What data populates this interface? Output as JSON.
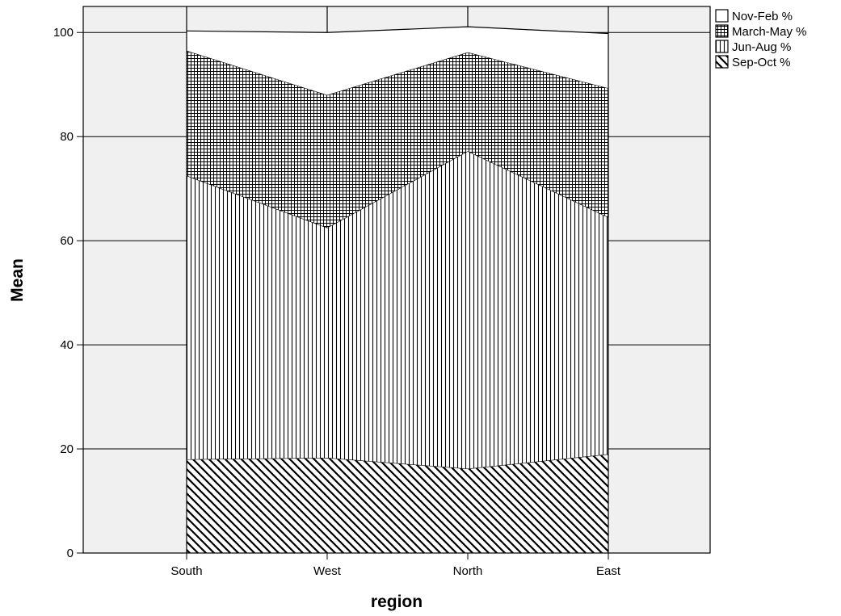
{
  "chart_data": {
    "type": "area",
    "stacked": true,
    "categories": [
      "South",
      "West",
      "North",
      "East"
    ],
    "series": [
      {
        "name": "Sep-Oct %",
        "pattern": "diagonal-hatch",
        "values": [
          18.0,
          18.3,
          16.2,
          19.0
        ]
      },
      {
        "name": "Jun-Aug %",
        "pattern": "vertical-lines",
        "values": [
          54.5,
          44.2,
          61.0,
          45.5
        ]
      },
      {
        "name": "March-May %",
        "pattern": "crosshatch-grid",
        "values": [
          24.0,
          25.5,
          19.0,
          24.8
        ]
      },
      {
        "name": "Nov-Feb %",
        "pattern": "none",
        "values": [
          3.8,
          12.0,
          4.9,
          10.5
        ]
      }
    ],
    "xlabel": "region",
    "ylabel": "Mean",
    "ylim": [
      0,
      105
    ],
    "yticks": [
      0,
      20,
      40,
      60,
      80,
      100
    ],
    "grid": "horizontal",
    "legend_position": "top-right",
    "colors": {
      "plot_background": "#f0f0f0",
      "area_background": "#ffffff",
      "line": "#000000"
    }
  }
}
